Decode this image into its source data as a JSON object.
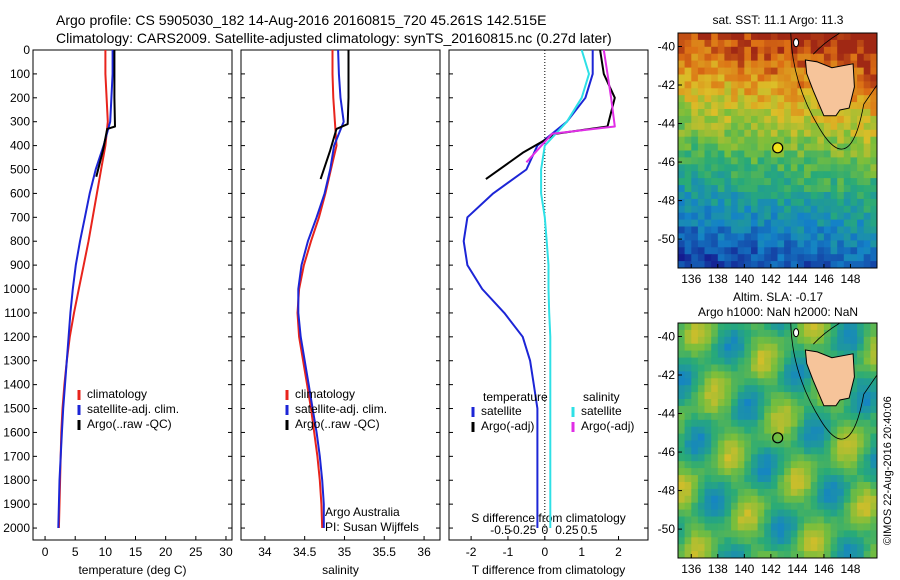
{
  "header": {
    "line1": "Argo profile: CS 5905030_182 14-Aug-2016 20160815_720 45.261S 142.515E",
    "line2": "Climatology: CARS2009. Satellite-adjusted climatology: synTS_20160815.nc (0.27d later)"
  },
  "depth_ticks": [
    "0",
    "100",
    "200",
    "300",
    "400",
    "500",
    "600",
    "700",
    "800",
    "900",
    "1000",
    "1100",
    "1200",
    "1300",
    "1400",
    "1500",
    "1600",
    "1700",
    "1800",
    "1900",
    "2000"
  ],
  "colors": {
    "climatology": "#e8241c",
    "satellite": "#1c25d6",
    "argo": "#000000",
    "sal_sat": "#2ee0e6",
    "sal_argo": "#e02ee6"
  },
  "chart_data": [
    {
      "type": "line",
      "xlabel": "temperature (deg C)",
      "xlim": [
        -2,
        31
      ],
      "ylim": [
        2050,
        0
      ],
      "xticks": [
        "0",
        "5",
        "10",
        "15",
        "20",
        "25",
        "30"
      ],
      "legend": [
        "climatology",
        "satellite-adj. clim.",
        "Argo(..raw -QC)"
      ],
      "legend_position": "lower-middle",
      "series": [
        {
          "name": "climatology",
          "x": [
            10,
            10,
            10.2,
            10.4,
            10,
            9.3,
            8.6,
            7.9,
            7.2,
            6.4,
            5.6,
            4.8,
            4.1,
            3.6,
            3.2,
            2.9,
            2.7,
            2.6,
            2.5,
            2.4,
            2.3
          ],
          "y": [
            0,
            100,
            200,
            300,
            400,
            500,
            600,
            700,
            800,
            900,
            1000,
            1100,
            1200,
            1300,
            1400,
            1500,
            1600,
            1700,
            1800,
            1900,
            2000
          ]
        },
        {
          "name": "satellite-adj. clim.",
          "x": [
            11.2,
            11.2,
            11,
            10.8,
            9.7,
            8.4,
            7.4,
            6.6,
            5.8,
            5.1,
            4.6,
            4.2,
            3.9,
            3.6,
            3.3,
            3,
            2.8,
            2.6,
            2.4,
            2.3,
            2.2
          ],
          "y": [
            0,
            100,
            200,
            300,
            400,
            500,
            600,
            700,
            800,
            900,
            1000,
            1100,
            1200,
            1300,
            1400,
            1500,
            1600,
            1700,
            1800,
            1900,
            2000
          ]
        },
        {
          "name": "Argo(..raw -QC)",
          "x": [
            11.5,
            11.5,
            11.5,
            11.6,
            10.3,
            9.6,
            8.5
          ],
          "y": [
            0,
            100,
            200,
            320,
            330,
            420,
            530
          ]
        }
      ]
    },
    {
      "type": "line",
      "xlabel": "salinity",
      "xlim": [
        33.7,
        36.2
      ],
      "ylim": [
        2050,
        0
      ],
      "xticks": [
        "34",
        "34.5",
        "35",
        "35.5",
        "36"
      ],
      "legend": [
        "climatology",
        "satellite-adj. clim.",
        "Argo(..raw -QC)"
      ],
      "legend_position": "lower-middle",
      "annotations": [
        "Argo Australia",
        "PI: Susan Wijffels"
      ],
      "series": [
        {
          "name": "climatology",
          "x": [
            34.85,
            34.85,
            34.86,
            34.88,
            34.9,
            34.83,
            34.76,
            34.68,
            34.58,
            34.49,
            34.43,
            34.41,
            34.43,
            34.48,
            34.53,
            34.58,
            34.62,
            34.66,
            34.69,
            34.71,
            34.72
          ],
          "y": [
            0,
            100,
            200,
            300,
            400,
            500,
            600,
            700,
            800,
            900,
            1000,
            1100,
            1200,
            1300,
            1400,
            1500,
            1600,
            1700,
            1800,
            1900,
            2000
          ]
        },
        {
          "name": "satellite-adj. clim.",
          "x": [
            34.92,
            34.93,
            34.95,
            34.99,
            34.87,
            34.82,
            34.75,
            34.65,
            34.54,
            34.46,
            34.42,
            34.42,
            34.45,
            34.5,
            34.55,
            34.6,
            34.65,
            34.69,
            34.72,
            34.74,
            34.74
          ],
          "y": [
            0,
            100,
            200,
            300,
            400,
            500,
            600,
            700,
            800,
            900,
            1000,
            1100,
            1200,
            1300,
            1400,
            1500,
            1600,
            1700,
            1800,
            1900,
            2000
          ]
        },
        {
          "name": "Argo(..raw -QC)",
          "x": [
            35.05,
            35.05,
            35.05,
            35.04,
            34.9,
            34.82,
            34.7
          ],
          "y": [
            0,
            100,
            200,
            310,
            330,
            420,
            540
          ]
        }
      ]
    },
    {
      "type": "line",
      "xlabel": "T difference from climatology",
      "x2label": "S difference from climatology",
      "xlim": [
        -2.6,
        2.8
      ],
      "ylim": [
        2050,
        0
      ],
      "xticks": [
        "-2",
        "-1",
        "0",
        "1",
        "2"
      ],
      "x2ticks": [
        "-0.5",
        "-0.25",
        "0",
        "0.25",
        "0.5"
      ],
      "legend_titles": [
        "temperature",
        "salinity"
      ],
      "legend": [
        "satellite",
        "Argo(-adj)",
        "satellite",
        "Argo(-adj)"
      ],
      "legend_position": "lower-middle",
      "series": [
        {
          "name": "satellite",
          "x": [
            1.3,
            1.3,
            1.1,
            0.6,
            -0.2,
            -0.5,
            -1.4,
            -2.1,
            -2.2,
            -2.1,
            -1.7,
            -1.1,
            -0.6,
            -0.4,
            -0.3,
            -0.2,
            -0.2,
            -0.2,
            -0.2,
            -0.2,
            -0.2
          ],
          "y": [
            0,
            100,
            200,
            300,
            400,
            500,
            600,
            700,
            800,
            900,
            1000,
            1100,
            1200,
            1300,
            1400,
            1500,
            1600,
            1700,
            1800,
            1900,
            2000
          ]
        },
        {
          "name": "Argo(-adj)",
          "x": [
            1.5,
            1.6,
            1.9,
            1.7,
            0.3,
            -0.6,
            -1.6
          ],
          "y": [
            0,
            100,
            200,
            320,
            350,
            430,
            540
          ]
        },
        {
          "name": "satellite",
          "x": [
            1,
            1.2,
            1,
            0.6,
            0,
            -0.1,
            -0.1,
            0,
            0.05,
            0.1,
            0.1,
            0.12,
            0.15,
            0.15,
            0.15,
            0.15,
            0.15,
            0.15,
            0.15,
            0.15,
            0.15
          ],
          "y": [
            0,
            100,
            200,
            300,
            400,
            500,
            600,
            700,
            800,
            900,
            1000,
            1100,
            1200,
            1300,
            1400,
            1500,
            1600,
            1700,
            1800,
            1900,
            2000
          ]
        },
        {
          "name": "Argo(-adj)",
          "x": [
            1.6,
            1.7,
            1.8,
            1.9,
            0.2,
            -0.5
          ],
          "y": [
            0,
            100,
            200,
            320,
            350,
            470
          ]
        }
      ]
    },
    {
      "type": "heatmap",
      "title": "sat. SST: 11.1  Argo: 11.3",
      "yticks": [
        "-40",
        "-42",
        "-44",
        "-46",
        "-48",
        "-50"
      ],
      "xticks": [
        "136",
        "138",
        "140",
        "142",
        "144",
        "146",
        "148"
      ],
      "argo_position": {
        "lon": 142.515,
        "lat": -45.261
      }
    },
    {
      "type": "heatmap",
      "title": "Altim. SLA: -0.17",
      "subtitle": "Argo h1000: NaN h2000: NaN",
      "yticks": [
        "-40",
        "-42",
        "-44",
        "-46",
        "-48",
        "-50"
      ],
      "xticks": [
        "136",
        "138",
        "140",
        "142",
        "144",
        "146",
        "148"
      ],
      "argo_position": {
        "lon": 142.515,
        "lat": -45.261
      }
    }
  ],
  "side_stamp": "©IMOS 22-Aug-2016 20:40:06"
}
